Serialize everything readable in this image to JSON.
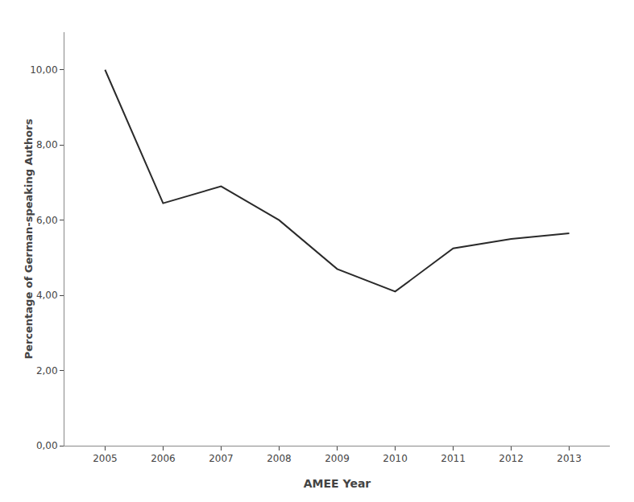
{
  "chart_data": {
    "type": "line",
    "x": [
      2005,
      2006,
      2007,
      2008,
      2009,
      2010,
      2011,
      2012,
      2013
    ],
    "values": [
      10.0,
      6.45,
      6.9,
      6.0,
      4.7,
      4.1,
      5.25,
      5.5,
      5.65
    ],
    "xlabel": "AMEE Year",
    "ylabel": "Percentage of German-speaking Authors",
    "xlim": [
      2004.3,
      2013.7
    ],
    "ylim": [
      0.0,
      11.0
    ],
    "xticks": [
      2005,
      2006,
      2007,
      2008,
      2009,
      2010,
      2011,
      2012,
      2013
    ],
    "yticks": [
      {
        "value": 0.0,
        "label": "0,00"
      },
      {
        "value": 2.0,
        "label": "2,00"
      },
      {
        "value": 4.0,
        "label": "4,00"
      },
      {
        "value": 6.0,
        "label": "6,00"
      },
      {
        "value": 8.0,
        "label": "8,00"
      },
      {
        "value": 10.0,
        "label": "10,00"
      }
    ],
    "color": "#2a2a2a",
    "grid": false
  }
}
